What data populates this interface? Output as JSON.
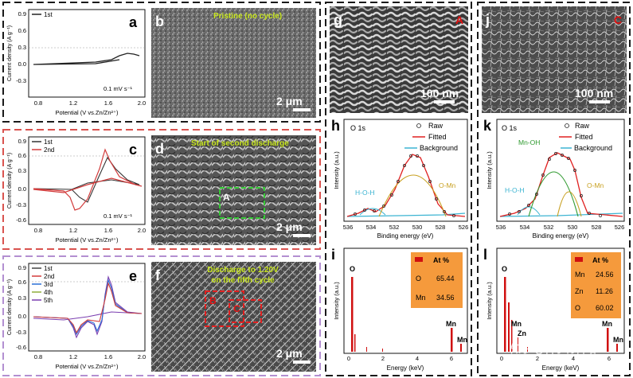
{
  "colors": {
    "border_black": "#1a1a1a",
    "border_red": "#d9534f",
    "border_purple": "#b38fd1",
    "sem_base": "#6f6f6f",
    "caption_yellow": "#c8e61e",
    "box_green": "#37c837",
    "box_red": "#e02020",
    "label_red": "#e01010",
    "raw_black": "#222222",
    "fitted_red": "#e02020",
    "background_cyan": "#3cb4d2",
    "omn_gold": "#c8a020",
    "mnoh_green": "#2f9a2f",
    "edx_bar": "#d01010",
    "table_bg": "#f59a3c"
  },
  "panels": {
    "a": {
      "letter": "a",
      "ylabel": "Current density (A g⁻¹)",
      "xlabel": "Potential (V vs.Zn/Zn²⁺)",
      "legend": [
        "1st"
      ],
      "scan_rate": "0.1 mV s⁻¹",
      "yticks": [
        "0.9",
        "0.6",
        "0.3",
        "0.0",
        "-0.3"
      ],
      "xticks": [
        "0.8",
        "1.2",
        "1.6",
        "2.0"
      ]
    },
    "b": {
      "letter": "b",
      "caption": "Pristine (no cycle)",
      "scale": "2 μm"
    },
    "c": {
      "letter": "c",
      "ylabel": "Current density (A g⁻¹)",
      "xlabel": "Potential (V vs.Zn/Zn²⁺)",
      "legend": [
        "1st",
        "2nd"
      ],
      "scan_rate": "0.1 mV s⁻¹",
      "yticks": [
        "0.9",
        "0.6",
        "0.3",
        "0.0",
        "-0.3",
        "-0.6"
      ],
      "xticks": [
        "0.8",
        "1.2",
        "1.6",
        "2.0"
      ]
    },
    "d": {
      "letter": "d",
      "caption": "Start of second discharge",
      "scale": "2 μm",
      "box_label": "A"
    },
    "e": {
      "letter": "e",
      "ylabel": "Current density (A g⁻¹)",
      "xlabel": "Potential (V vs.Zn/Zn²⁺)",
      "legend": [
        "1st",
        "2nd",
        "3rd",
        "4th",
        "5th"
      ],
      "legend_colors": [
        "#444444",
        "#d23c3c",
        "#2a6fd6",
        "#8fae3a",
        "#7b3fb0"
      ],
      "yticks": [
        "0.9",
        "0.6",
        "0.3",
        "0.0",
        "-0.3",
        "-0.6"
      ],
      "xticks": [
        "0.8",
        "1.2",
        "1.6",
        "2.0"
      ]
    },
    "f": {
      "letter": "f",
      "caption_line1": "Discharge to 1.20V",
      "caption_line2": "on the fifth cycle",
      "scale": "2 μm",
      "box_labels": [
        "B",
        "C"
      ]
    },
    "g": {
      "letter": "g",
      "corner_label": "A",
      "scale": "100 nm"
    },
    "j": {
      "letter": "j",
      "corner_label": "C",
      "scale": "100 nm"
    },
    "h": {
      "letter": "h",
      "element": "O 1s",
      "legend": [
        "Raw",
        "Fitted",
        "Background"
      ],
      "peaks": [
        "H-O-H",
        "O-Mn"
      ],
      "ylabel": "Intensity (a.u.)",
      "xlabel": "Binding energy (eV)",
      "xticks": [
        "536",
        "534",
        "532",
        "530",
        "528",
        "526"
      ]
    },
    "k": {
      "letter": "k",
      "element": "O 1s",
      "legend": [
        "Raw",
        "Fitted",
        "Background"
      ],
      "peaks": [
        "Mn-OH",
        "H-O-H",
        "O-Mn"
      ],
      "ylabel": "Intensity (a.u.)",
      "xlabel": "Binding energy (eV)",
      "xticks": [
        "536",
        "534",
        "532",
        "530",
        "528",
        "526"
      ]
    },
    "i": {
      "letter": "i",
      "ylabel": "Intensity (a.u.)",
      "xlabel": "Energy (keV)",
      "xticks": [
        "0",
        "2",
        "4",
        "6"
      ],
      "peak_labels": [
        "O",
        "Mn",
        "Mn"
      ],
      "table_header": "At %",
      "table_rows": [
        [
          "O",
          "65.44"
        ],
        [
          "Mn",
          "34.56"
        ]
      ]
    },
    "l": {
      "letter": "l",
      "ylabel": "Intensity (a.u.)",
      "xlabel": "Energy (keV)",
      "xticks": [
        "0",
        "2",
        "4",
        "6"
      ],
      "peak_labels": [
        "O",
        "Mn",
        "Zn",
        "Mn",
        "Mn"
      ],
      "table_header": "At %",
      "table_rows": [
        [
          "Mn",
          "24.56"
        ],
        [
          "Zn",
          "11.26"
        ],
        [
          "O",
          "60.02"
        ]
      ]
    }
  },
  "watermark": "知乎 @科学材料站"
}
